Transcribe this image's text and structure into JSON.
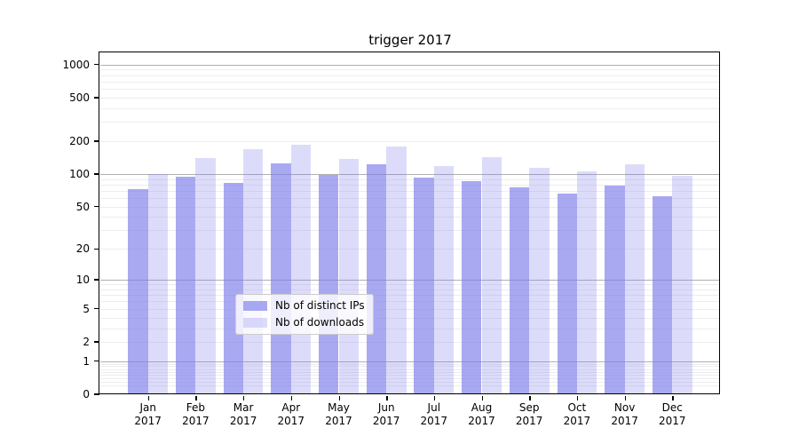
{
  "title": "trigger 2017",
  "chart_data": {
    "type": "bar",
    "title": "trigger 2017",
    "categories": [
      "Jan 2017",
      "Feb 2017",
      "Mar 2017",
      "Apr 2017",
      "May 2017",
      "Jun 2017",
      "Jul 2017",
      "Aug 2017",
      "Sep 2017",
      "Oct 2017",
      "Nov 2017",
      "Dec 2017"
    ],
    "series": [
      {
        "name": "Nb of distinct IPs",
        "color": "rgba(124,124,235,0.66)",
        "values": [
          72,
          95,
          83,
          125,
          99,
          123,
          92,
          86,
          76,
          66,
          79,
          63
        ]
      },
      {
        "name": "Nb of downloads",
        "color": "rgba(124,124,235,0.27)",
        "values": [
          100,
          141,
          168,
          186,
          137,
          178,
          119,
          142,
          113,
          106,
          124,
          96
        ]
      }
    ],
    "xlabel": "",
    "ylabel": "",
    "yscale": "log1p",
    "ylim": [
      0,
      1266
    ],
    "y_ticks": [
      0,
      1,
      2,
      5,
      10,
      20,
      50,
      100,
      200,
      500,
      1000
    ],
    "y_major_gridlines": [
      1,
      10,
      100,
      1000
    ],
    "y_minor_gridline_subs": [
      2,
      3,
      4,
      5,
      6,
      7,
      8,
      9
    ],
    "grid": "both",
    "legend_position": "lower center inside"
  },
  "legend": {
    "items": [
      {
        "label": "Nb of distinct IPs",
        "color": "rgba(124,124,235,0.66)"
      },
      {
        "label": "Nb of downloads",
        "color": "rgba(124,124,235,0.27)"
      }
    ]
  },
  "colors": {
    "accent_bar_base": "#7c7ceb",
    "major_grid": "#b0b0b0",
    "minor_grid": "#edecef",
    "spine": "#000000",
    "legend_border": "#cccccc"
  }
}
